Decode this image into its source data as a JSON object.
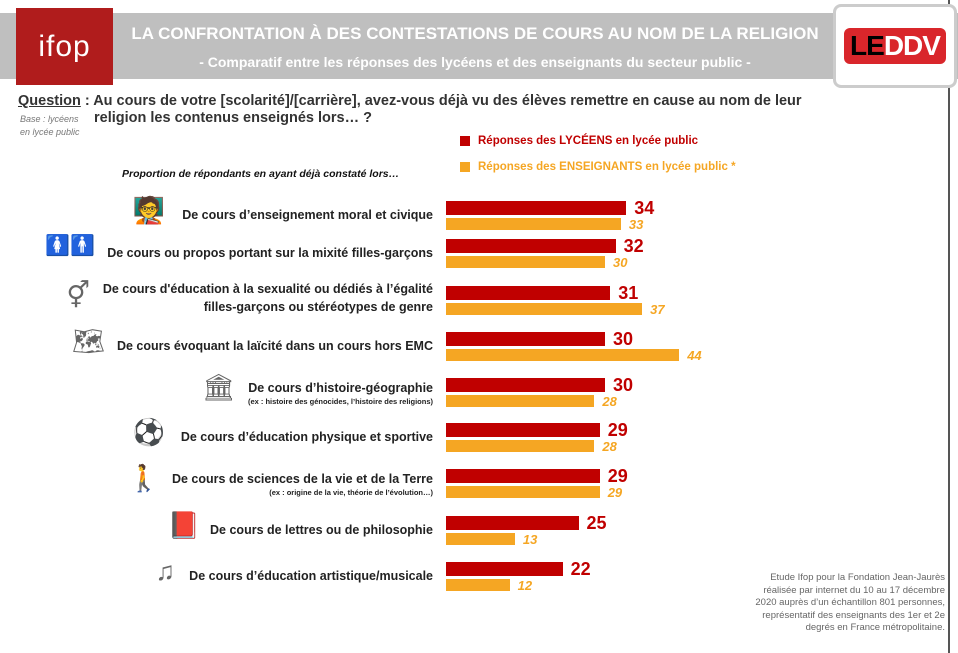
{
  "header": {
    "logo_left": "ifop",
    "logo_right_a": "LE",
    "logo_right_b": "DDV",
    "title": "LA CONFRONTATION À DES CONTESTATIONS DE COURS AU NOM DE LA RELIGION",
    "subtitle": "- Comparatif entre les réponses des lycéens et des enseignants du secteur public -"
  },
  "question": {
    "label": "Question",
    "text": " : Au cours de votre [scolarité]/[carrière], avez-vous déjà vu des élèves remettre en cause au nom de leur",
    "text2": "religion les contenus enseignés lors… ?",
    "base": "Base : lycéens en lycée public"
  },
  "intro": "Proportion de répondants en ayant déjà constaté lors…",
  "note": "Etude Ifop pour la Fondation Jean-Jaurès réalisée par internet du 10 au 17 décembre 2020 auprès d’un échantillon 801 personnes, représentatif des enseignants des 1er et 2e degrés en France métropolitaine.",
  "chart_data": {
    "type": "bar",
    "orientation": "horizontal",
    "categories": [
      "De cours d’enseignement moral et civique",
      "De cours ou propos portant sur la mixité filles-garçons",
      "De cours d'éducation à la sexualité ou dédiés à l’égalité filles-garçons ou stéréotypes de genre",
      "De cours évoquant la laïcité dans un cours hors EMC",
      "De cours d’histoire-géographie",
      "De cours d’éducation physique et sportive",
      "De cours de sciences de la vie et de la Terre",
      "De cours de lettres ou de philosophie",
      "De cours d’éducation artistique/musicale"
    ],
    "sublabels": [
      "",
      "",
      "",
      "",
      "(ex : histoire des génocides, l’histoire des religions)",
      "",
      "(ex : origine de la vie, théorie de l’évolution…)",
      "",
      ""
    ],
    "icons": [
      "teacher-board-icon",
      "boy-girl-icon",
      "gender-symbols-icon",
      "teacher-map-icon",
      "museum-book-icon",
      "sports-icon",
      "evolution-icon",
      "book-head-icon",
      "music-board-icon"
    ],
    "series": [
      {
        "name": "Réponses des LYCÉENS en lycée public",
        "color": "#c00000",
        "values": [
          34,
          32,
          31,
          30,
          30,
          29,
          29,
          25,
          22
        ]
      },
      {
        "name": "Réponses des ENSEIGNANTS en lycée public *",
        "color": "#f5a623",
        "values": [
          33,
          30,
          37,
          44,
          28,
          28,
          29,
          13,
          12
        ]
      }
    ],
    "legend": "top-right"
  }
}
